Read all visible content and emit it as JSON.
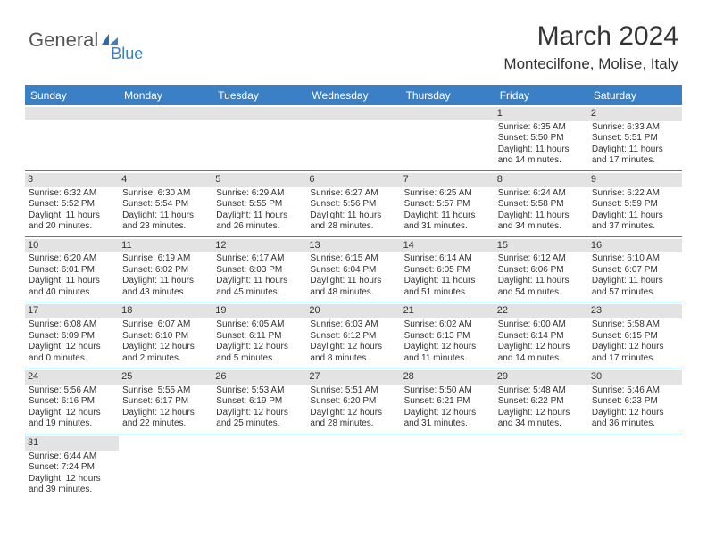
{
  "logo": {
    "text1": "General",
    "text2": "Blue"
  },
  "header": {
    "title": "March 2024",
    "location": "Montecilfone, Molise, Italy"
  },
  "colors": {
    "accent": "#3b7fc4",
    "header_bg": "#3b7fc4",
    "daynum_bg": "#e3e3e3",
    "text": "#333333",
    "bg": "#ffffff"
  },
  "weekdays": [
    "Sunday",
    "Monday",
    "Tuesday",
    "Wednesday",
    "Thursday",
    "Friday",
    "Saturday"
  ],
  "weeks": [
    [
      {
        "n": "",
        "sr": "",
        "ss": "",
        "dl": ""
      },
      {
        "n": "",
        "sr": "",
        "ss": "",
        "dl": ""
      },
      {
        "n": "",
        "sr": "",
        "ss": "",
        "dl": ""
      },
      {
        "n": "",
        "sr": "",
        "ss": "",
        "dl": ""
      },
      {
        "n": "",
        "sr": "",
        "ss": "",
        "dl": ""
      },
      {
        "n": "1",
        "sr": "Sunrise: 6:35 AM",
        "ss": "Sunset: 5:50 PM",
        "dl": "Daylight: 11 hours and 14 minutes."
      },
      {
        "n": "2",
        "sr": "Sunrise: 6:33 AM",
        "ss": "Sunset: 5:51 PM",
        "dl": "Daylight: 11 hours and 17 minutes."
      }
    ],
    [
      {
        "n": "3",
        "sr": "Sunrise: 6:32 AM",
        "ss": "Sunset: 5:52 PM",
        "dl": "Daylight: 11 hours and 20 minutes."
      },
      {
        "n": "4",
        "sr": "Sunrise: 6:30 AM",
        "ss": "Sunset: 5:54 PM",
        "dl": "Daylight: 11 hours and 23 minutes."
      },
      {
        "n": "5",
        "sr": "Sunrise: 6:29 AM",
        "ss": "Sunset: 5:55 PM",
        "dl": "Daylight: 11 hours and 26 minutes."
      },
      {
        "n": "6",
        "sr": "Sunrise: 6:27 AM",
        "ss": "Sunset: 5:56 PM",
        "dl": "Daylight: 11 hours and 28 minutes."
      },
      {
        "n": "7",
        "sr": "Sunrise: 6:25 AM",
        "ss": "Sunset: 5:57 PM",
        "dl": "Daylight: 11 hours and 31 minutes."
      },
      {
        "n": "8",
        "sr": "Sunrise: 6:24 AM",
        "ss": "Sunset: 5:58 PM",
        "dl": "Daylight: 11 hours and 34 minutes."
      },
      {
        "n": "9",
        "sr": "Sunrise: 6:22 AM",
        "ss": "Sunset: 5:59 PM",
        "dl": "Daylight: 11 hours and 37 minutes."
      }
    ],
    [
      {
        "n": "10",
        "sr": "Sunrise: 6:20 AM",
        "ss": "Sunset: 6:01 PM",
        "dl": "Daylight: 11 hours and 40 minutes."
      },
      {
        "n": "11",
        "sr": "Sunrise: 6:19 AM",
        "ss": "Sunset: 6:02 PM",
        "dl": "Daylight: 11 hours and 43 minutes."
      },
      {
        "n": "12",
        "sr": "Sunrise: 6:17 AM",
        "ss": "Sunset: 6:03 PM",
        "dl": "Daylight: 11 hours and 45 minutes."
      },
      {
        "n": "13",
        "sr": "Sunrise: 6:15 AM",
        "ss": "Sunset: 6:04 PM",
        "dl": "Daylight: 11 hours and 48 minutes."
      },
      {
        "n": "14",
        "sr": "Sunrise: 6:14 AM",
        "ss": "Sunset: 6:05 PM",
        "dl": "Daylight: 11 hours and 51 minutes."
      },
      {
        "n": "15",
        "sr": "Sunrise: 6:12 AM",
        "ss": "Sunset: 6:06 PM",
        "dl": "Daylight: 11 hours and 54 minutes."
      },
      {
        "n": "16",
        "sr": "Sunrise: 6:10 AM",
        "ss": "Sunset: 6:07 PM",
        "dl": "Daylight: 11 hours and 57 minutes."
      }
    ],
    [
      {
        "n": "17",
        "sr": "Sunrise: 6:08 AM",
        "ss": "Sunset: 6:09 PM",
        "dl": "Daylight: 12 hours and 0 minutes."
      },
      {
        "n": "18",
        "sr": "Sunrise: 6:07 AM",
        "ss": "Sunset: 6:10 PM",
        "dl": "Daylight: 12 hours and 2 minutes."
      },
      {
        "n": "19",
        "sr": "Sunrise: 6:05 AM",
        "ss": "Sunset: 6:11 PM",
        "dl": "Daylight: 12 hours and 5 minutes."
      },
      {
        "n": "20",
        "sr": "Sunrise: 6:03 AM",
        "ss": "Sunset: 6:12 PM",
        "dl": "Daylight: 12 hours and 8 minutes."
      },
      {
        "n": "21",
        "sr": "Sunrise: 6:02 AM",
        "ss": "Sunset: 6:13 PM",
        "dl": "Daylight: 12 hours and 11 minutes."
      },
      {
        "n": "22",
        "sr": "Sunrise: 6:00 AM",
        "ss": "Sunset: 6:14 PM",
        "dl": "Daylight: 12 hours and 14 minutes."
      },
      {
        "n": "23",
        "sr": "Sunrise: 5:58 AM",
        "ss": "Sunset: 6:15 PM",
        "dl": "Daylight: 12 hours and 17 minutes."
      }
    ],
    [
      {
        "n": "24",
        "sr": "Sunrise: 5:56 AM",
        "ss": "Sunset: 6:16 PM",
        "dl": "Daylight: 12 hours and 19 minutes."
      },
      {
        "n": "25",
        "sr": "Sunrise: 5:55 AM",
        "ss": "Sunset: 6:17 PM",
        "dl": "Daylight: 12 hours and 22 minutes."
      },
      {
        "n": "26",
        "sr": "Sunrise: 5:53 AM",
        "ss": "Sunset: 6:19 PM",
        "dl": "Daylight: 12 hours and 25 minutes."
      },
      {
        "n": "27",
        "sr": "Sunrise: 5:51 AM",
        "ss": "Sunset: 6:20 PM",
        "dl": "Daylight: 12 hours and 28 minutes."
      },
      {
        "n": "28",
        "sr": "Sunrise: 5:50 AM",
        "ss": "Sunset: 6:21 PM",
        "dl": "Daylight: 12 hours and 31 minutes."
      },
      {
        "n": "29",
        "sr": "Sunrise: 5:48 AM",
        "ss": "Sunset: 6:22 PM",
        "dl": "Daylight: 12 hours and 34 minutes."
      },
      {
        "n": "30",
        "sr": "Sunrise: 5:46 AM",
        "ss": "Sunset: 6:23 PM",
        "dl": "Daylight: 12 hours and 36 minutes."
      }
    ],
    [
      {
        "n": "31",
        "sr": "Sunrise: 6:44 AM",
        "ss": "Sunset: 7:24 PM",
        "dl": "Daylight: 12 hours and 39 minutes."
      },
      {
        "n": "",
        "sr": "",
        "ss": "",
        "dl": ""
      },
      {
        "n": "",
        "sr": "",
        "ss": "",
        "dl": ""
      },
      {
        "n": "",
        "sr": "",
        "ss": "",
        "dl": ""
      },
      {
        "n": "",
        "sr": "",
        "ss": "",
        "dl": ""
      },
      {
        "n": "",
        "sr": "",
        "ss": "",
        "dl": ""
      },
      {
        "n": "",
        "sr": "",
        "ss": "",
        "dl": ""
      }
    ]
  ]
}
